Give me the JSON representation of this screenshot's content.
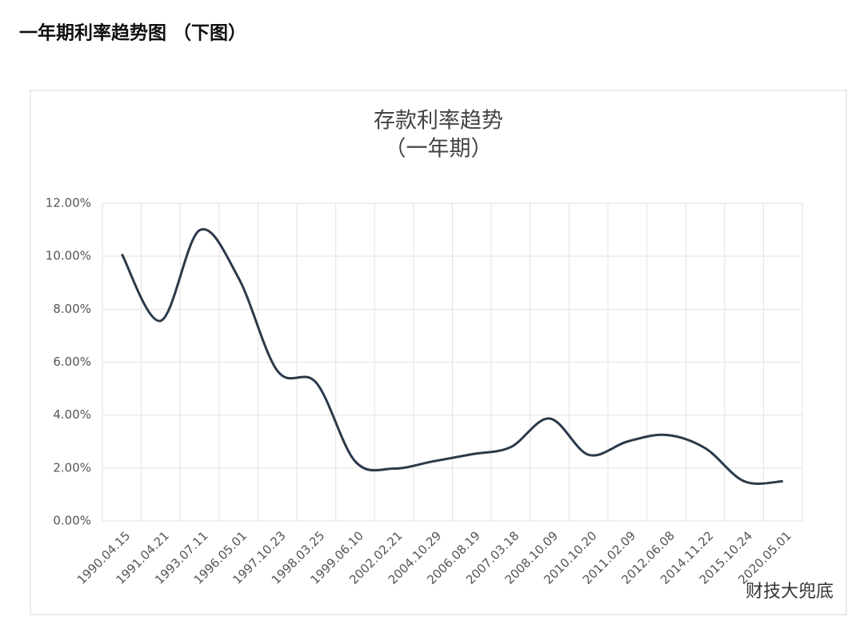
{
  "heading": "一年期利率趋势图 （下图）",
  "watermark": "财技大兜底",
  "chart_data": {
    "type": "line",
    "title": "存款利率趋势",
    "subtitle": "（一年期）",
    "categories": [
      "1990.04.15",
      "1991.04.21",
      "1993.07.11",
      "1996.05.01",
      "1997.10.23",
      "1998.03.25",
      "1999.06.10",
      "2002.02.21",
      "2004.10.29",
      "2006.08.19",
      "2007.03.18",
      "2008.10.09",
      "2010.10.20",
      "2011.02.09",
      "2012.06.08",
      "2014.11.22",
      "2015.10.24",
      "2020.05.01"
    ],
    "series": [
      {
        "name": "一年期",
        "color": "#2b3a4a",
        "values": [
          10.08,
          7.56,
          10.98,
          9.18,
          5.67,
          5.22,
          2.25,
          1.98,
          2.25,
          2.52,
          2.79,
          3.87,
          2.5,
          3.0,
          3.25,
          2.75,
          1.5,
          1.5
        ]
      }
    ],
    "ylim": [
      0,
      12
    ],
    "yticks": [
      {
        "value": 0,
        "label": "0.00%"
      },
      {
        "value": 2,
        "label": "2.00%"
      },
      {
        "value": 4,
        "label": "4.00%"
      },
      {
        "value": 6,
        "label": "6.00%"
      },
      {
        "value": 8,
        "label": "8.00%"
      },
      {
        "value": 10,
        "label": "10.00%"
      },
      {
        "value": 12,
        "label": "12.00%"
      }
    ],
    "grid": true,
    "smooth": true
  }
}
